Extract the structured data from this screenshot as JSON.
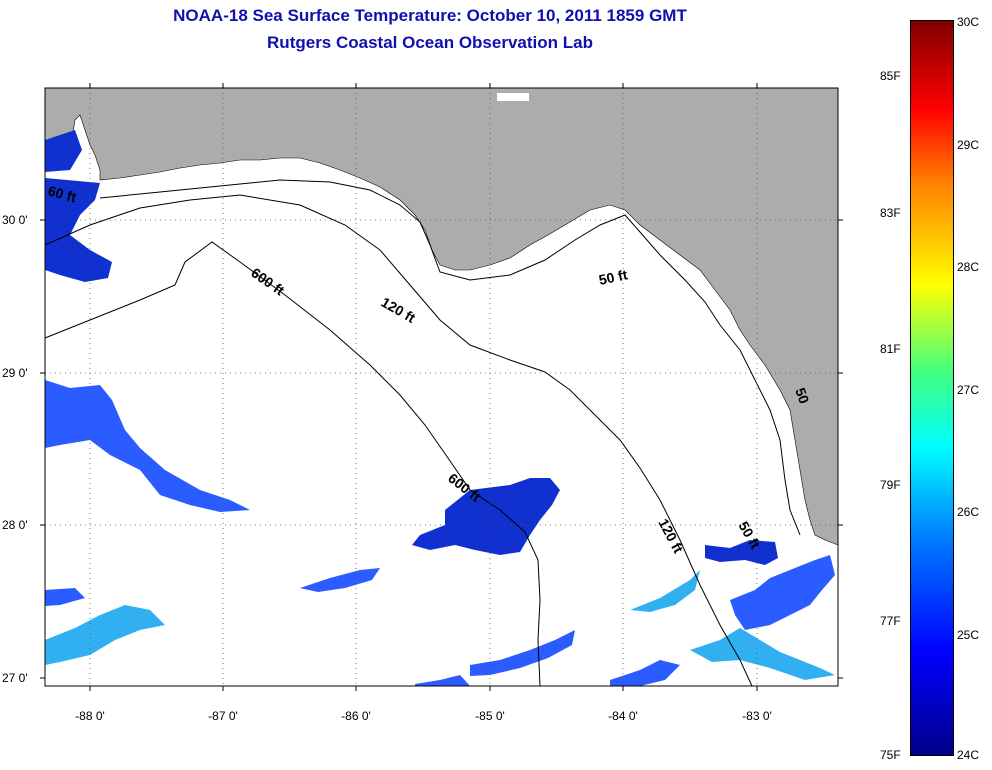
{
  "header": {
    "title": "NOAA-18 Sea Surface Temperature:  October 10, 2011 1859 GMT",
    "subtitle": "Rutgers Coastal Ocean Observation Lab"
  },
  "map": {
    "lat_labels": [
      "30 0'",
      "29 0'",
      "28 0'",
      "27 0'"
    ],
    "lon_labels": [
      "-88 0'",
      "-87 0'",
      "-86 0'",
      "-85 0'",
      "-84 0'",
      "-83 0'"
    ],
    "contour_labels": {
      "c600a": "600 ft",
      "c600b": "600 ft",
      "c120a": "120 ft",
      "c120b": "120 ft",
      "c50a": "50 ft",
      "c50b": "50 ft",
      "c60": "60 ft",
      "c50c": "50"
    },
    "colors": {
      "land": "#acacac",
      "water": "#ffffff",
      "sst_dark": "#1030d0",
      "sst_mid": "#2060ff",
      "sst_light": "#30c0f0"
    }
  },
  "colorbar": {
    "fahrenheit": [
      "85F",
      "83F",
      "81F",
      "79F",
      "77F",
      "75F"
    ],
    "celsius": [
      "30C",
      "29C",
      "28C",
      "27C",
      "26C",
      "25C",
      "24C"
    ]
  }
}
